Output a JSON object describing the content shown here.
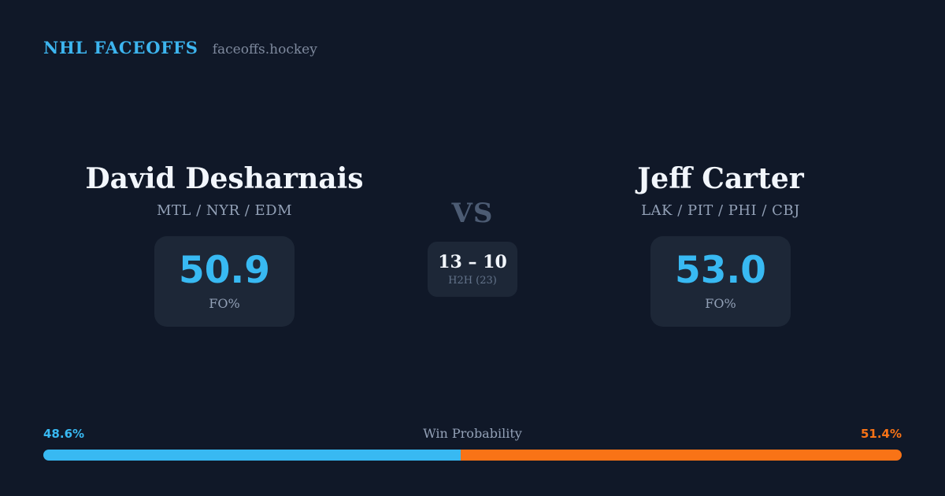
{
  "header": {
    "brand": "NHL FACEOFFS",
    "site": "faceoffs.hockey"
  },
  "player_left": {
    "name": "David Desharnais",
    "teams": "MTL / NYR / EDM",
    "fo_pct": "50.9",
    "fo_label": "FO%"
  },
  "player_right": {
    "name": "Jeff Carter",
    "teams": "LAK / PIT / PHI / CBJ",
    "fo_pct": "53.0",
    "fo_label": "FO%"
  },
  "center": {
    "vs": "VS",
    "h2h_score": "13 – 10",
    "h2h_label": "H2H (23)"
  },
  "win_probability": {
    "label": "Win Probability",
    "left_pct": "48.6%",
    "right_pct": "51.4%",
    "left_value": 48.6,
    "right_value": 51.4
  },
  "colors": {
    "background": "#101828",
    "card_box": "#1d2737",
    "accent_blue": "#38b9f2",
    "accent_orange": "#f97316",
    "text_primary": "#f2f6fc",
    "text_muted": "#93a1b7"
  }
}
